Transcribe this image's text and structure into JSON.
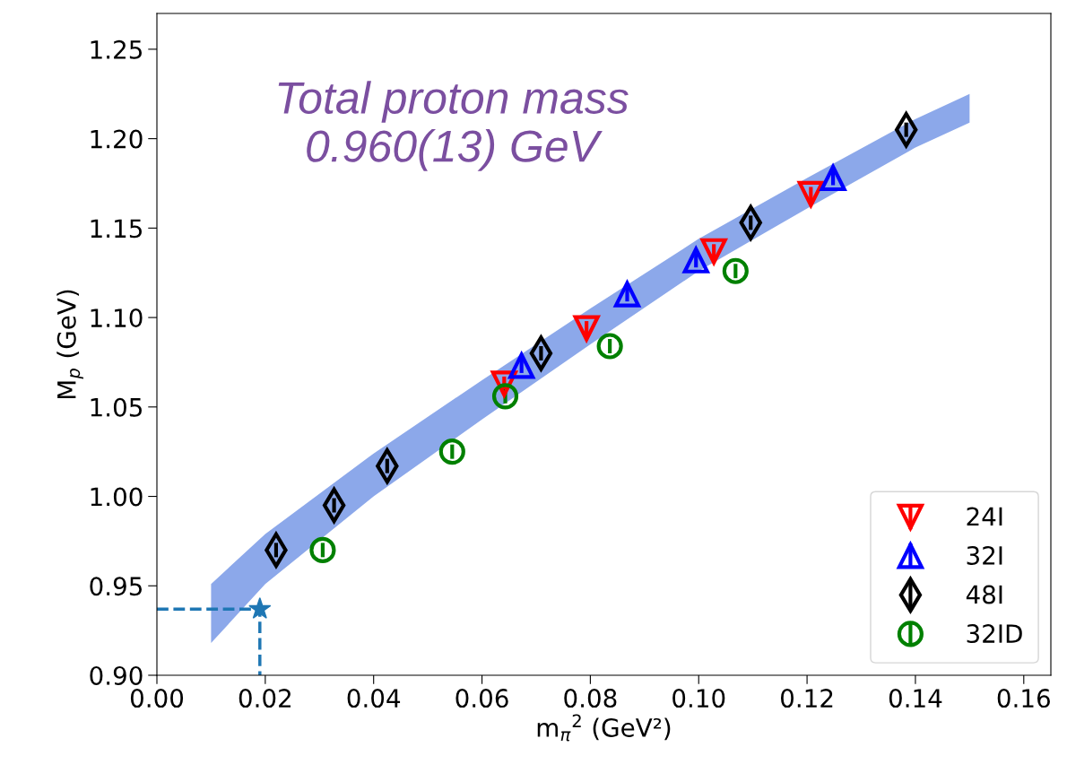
{
  "chart_data": {
    "type": "scatter",
    "xlabel": "m$_{π}$$^{2}$ (GeV²)",
    "ylabel": "M$_{p}$ (GeV)",
    "annotations": [
      "Total proton mass\n0.960(13) GeV"
    ],
    "xlim": [
      0,
      0.165
    ],
    "ylim": [
      0.9,
      1.27
    ],
    "xticks": [
      {
        "value": 0,
        "label": "0.00"
      },
      0.02,
      0.04,
      0.06,
      0.08,
      {
        "value": 0.1,
        "label": "0.10"
      },
      0.12,
      0.14,
      0.16
    ],
    "yticks": [
      {
        "value": 0.9,
        "label": "0.90"
      },
      0.95,
      {
        "value": 1.0,
        "label": "1.00"
      },
      1.05,
      {
        "value": 1.1,
        "label": "1.10"
      },
      1.15,
      {
        "value": 1.2,
        "label": "1.20"
      },
      1.25
    ],
    "grid": false,
    "legend": "bottom right",
    "series": [
      {
        "type": "area",
        "color": "#8ca8ea",
        "x": [
          0.01,
          0.02,
          0.04,
          0.06,
          0.08,
          0.1,
          0.12,
          0.14,
          0.15
        ],
        "values": [
          null,
          null,
          null,
          null,
          null,
          null,
          null,
          null,
          null
        ],
        "lower": [
          0.918,
          0.951,
          1.0,
          1.043,
          1.085,
          1.126,
          1.161,
          1.195,
          1.209
        ],
        "upper": [
          0.951,
          0.979,
          1.024,
          1.065,
          1.105,
          1.144,
          1.178,
          1.211,
          1.225
        ]
      },
      {
        "type": "line",
        "color": "#1f77b4",
        "line_style": "dashed",
        "marker": "none",
        "x": [
          0,
          0.019,
          0.019
        ],
        "values": [
          0.937,
          0.937,
          0.9
        ]
      },
      {
        "color": "#1f77b4",
        "marker": "star",
        "x": [
          0.019
        ],
        "values": [
          0.937
        ]
      },
      {
        "name": "24I",
        "color": "#ff0000",
        "marker": "triangle_down",
        "x": [
          0.0641,
          0.0793,
          0.1028,
          0.1207
        ],
        "values": [
          1.063,
          1.094,
          1.137,
          1.169
        ],
        "errors": [
          0.004,
          0.004,
          0.004,
          0.004
        ]
      },
      {
        "name": "32I",
        "color": "#0000ff",
        "marker": "triangle",
        "x": [
          0.0673,
          0.0868,
          0.0995,
          0.1248
        ],
        "values": [
          1.073,
          1.113,
          1.132,
          1.178
        ],
        "errors": [
          0.004,
          0.004,
          0.004,
          0.004
        ]
      },
      {
        "name": "48I",
        "color": "#000000",
        "marker": "diamond",
        "x": [
          0.022,
          0.0327,
          0.0425,
          0.0709,
          0.1096,
          0.1383
        ],
        "values": [
          0.97,
          0.995,
          1.017,
          1.08,
          1.153,
          1.205
        ],
        "errors": [
          0.004,
          0.004,
          0.004,
          0.004,
          0.004,
          0.004
        ]
      },
      {
        "name": "32ID",
        "color": "#008000",
        "marker": "circle",
        "x": [
          0.0306,
          0.0545,
          0.0643,
          0.0836,
          0.1068
        ],
        "values": [
          0.97,
          1.025,
          1.056,
          1.084,
          1.126
        ],
        "errors": [
          0.004,
          0.004,
          0.004,
          0.004,
          0.004
        ]
      }
    ]
  }
}
